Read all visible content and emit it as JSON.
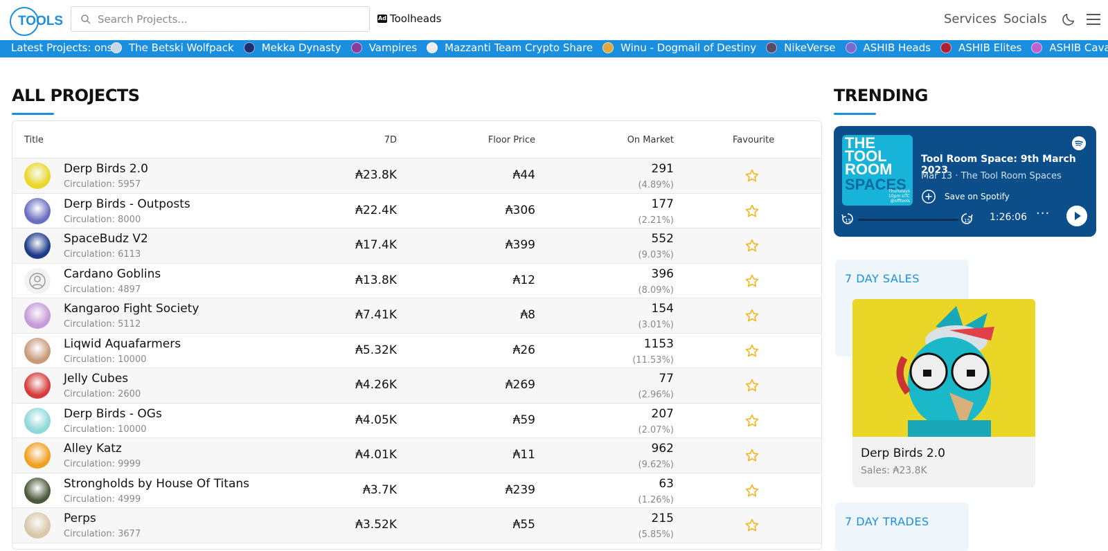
{
  "header": {
    "search_placeholder": "Search Projects...",
    "toolheads_label": "Toolheads",
    "nav": [
      "Services",
      "Socials"
    ]
  },
  "ticker": {
    "label": "Latest Projects: ons",
    "items": [
      {
        "name": "The Betski Wolfpack",
        "color": "#c9d6e6"
      },
      {
        "name": "Mekka Dynasty",
        "color": "#1c2f6e"
      },
      {
        "name": "Vampires",
        "color": "#8a3c9a"
      },
      {
        "name": "Mazzanti Team Crypto Share",
        "color": "#eeeeee"
      },
      {
        "name": "Winu - Dogmail of Destiny",
        "color": "#e0a640"
      },
      {
        "name": "NikeVerse",
        "color": "#5a4a6a"
      },
      {
        "name": "ASHIB Heads",
        "color": "#7a6ad0"
      },
      {
        "name": "ASHIB Elites",
        "color": "#b02030"
      },
      {
        "name": "ASHIB Cavalier Mo",
        "color": "#c060d0"
      }
    ]
  },
  "all_projects": {
    "heading": "ALL PROJECTS",
    "columns": {
      "title": "Title",
      "d7": "7D",
      "floor": "Floor Price",
      "market": "On Market",
      "fav": "Favourite"
    },
    "rows": [
      {
        "name": "Derp Birds 2.0",
        "circulation": "Circulation: 5957",
        "d7": "₳23.8K",
        "floor": "₳44",
        "market": "291",
        "pct": "(4.89%)",
        "avatar": "#e8d82a"
      },
      {
        "name": "Derp Birds - Outposts",
        "circulation": "Circulation: 8000",
        "d7": "₳22.4K",
        "floor": "₳306",
        "market": "177",
        "pct": "(2.21%)",
        "avatar": "#6a6ec0"
      },
      {
        "name": "SpaceBudz V2",
        "circulation": "Circulation: 6113",
        "d7": "₳17.4K",
        "floor": "₳399",
        "market": "552",
        "pct": "(9.03%)",
        "avatar": "#1b3a8a"
      },
      {
        "name": "Cardano Goblins",
        "circulation": "Circulation: 4897",
        "d7": "₳13.8K",
        "floor": "₳12",
        "market": "396",
        "pct": "(8.09%)",
        "avatar": "#f2f2f2"
      },
      {
        "name": "Kangaroo Fight Society",
        "circulation": "Circulation: 5112",
        "d7": "₳7.41K",
        "floor": "₳8",
        "market": "154",
        "pct": "(3.01%)",
        "avatar": "#c59ad8"
      },
      {
        "name": "Liqwid Aquafarmers",
        "circulation": "Circulation: 10000",
        "d7": "₳5.32K",
        "floor": "₳26",
        "market": "1153",
        "pct": "(11.53%)",
        "avatar": "#c89a7a"
      },
      {
        "name": "Jelly Cubes",
        "circulation": "Circulation: 2600",
        "d7": "₳4.26K",
        "floor": "₳269",
        "market": "77",
        "pct": "(2.96%)",
        "avatar": "#d63a3a"
      },
      {
        "name": "Derp Birds - OGs",
        "circulation": "Circulation: 10000",
        "d7": "₳4.05K",
        "floor": "₳59",
        "market": "207",
        "pct": "(2.07%)",
        "avatar": "#8fd8d8"
      },
      {
        "name": "Alley Katz",
        "circulation": "Circulation: 9999",
        "d7": "₳4.01K",
        "floor": "₳11",
        "market": "962",
        "pct": "(9.62%)",
        "avatar": "#f0a020"
      },
      {
        "name": "Strongholds by House Of Titans",
        "circulation": "Circulation: 4999",
        "d7": "₳3.7K",
        "floor": "₳239",
        "market": "63",
        "pct": "(1.26%)",
        "avatar": "#4a5a3a"
      },
      {
        "name": "Perps",
        "circulation": "Circulation: 3677",
        "d7": "₳3.52K",
        "floor": "₳55",
        "market": "215",
        "pct": "(5.85%)",
        "avatar": "#d8c8a8"
      }
    ]
  },
  "trending": {
    "heading": "TRENDING",
    "spotify": {
      "cover_line1": "THE TOOL ROOM",
      "cover_line2": "SPACES",
      "cover_line3": "Thursdays 10pm UTC @offtools",
      "title": "Tool Room Space: 9th March 2023",
      "subtitle": "Mar 13 · The Tool Room Spaces",
      "save": "Save on Spotify",
      "time": "1:26:06",
      "skip": "15"
    },
    "sales": {
      "heading": "7 DAY SALES",
      "name": "Derp Birds 2.0",
      "amount": "Sales: ₳23.8K"
    },
    "trades": {
      "heading": "7 DAY TRADES"
    }
  }
}
